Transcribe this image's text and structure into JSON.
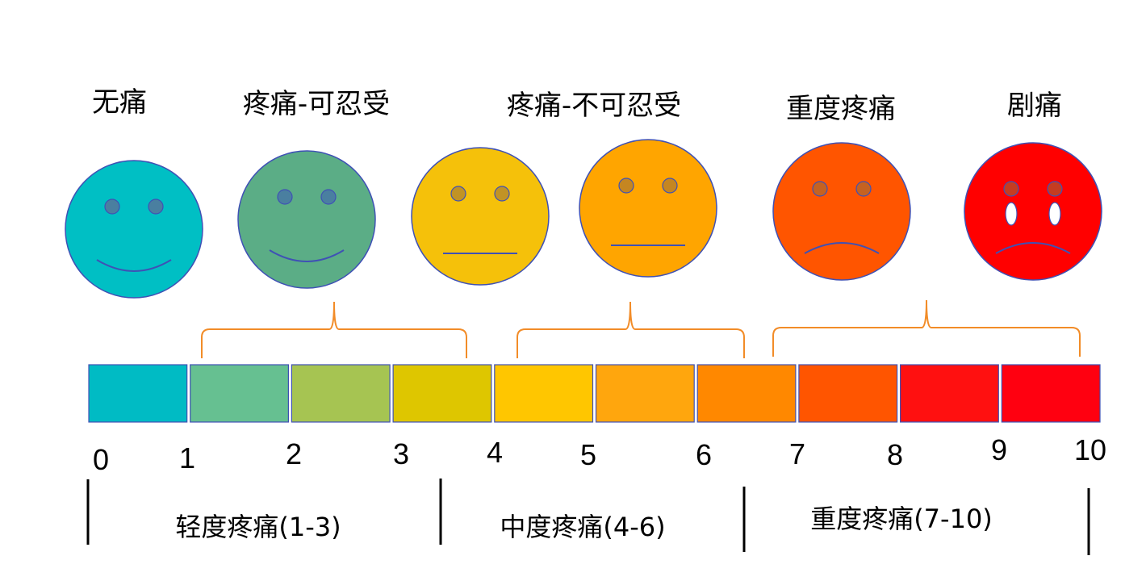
{
  "faces": [
    {
      "label": "无痛",
      "color": "#00BFC4",
      "mood": "happy"
    },
    {
      "label": "疼痛-可忍受",
      "color": "#5BAD86",
      "mood": "happy"
    },
    {
      "label": "疼痛-不可忍受",
      "color": "#F5C10A",
      "mood": "neutral"
    },
    {
      "label": "",
      "color": "#FFA500",
      "mood": "neutral"
    },
    {
      "label": "重度疼痛",
      "color": "#FF5500",
      "mood": "sad"
    },
    {
      "label": "剧痛",
      "color": "#FF0000",
      "mood": "crying"
    }
  ],
  "scale_colors": [
    "#00BBC4",
    "#66C091",
    "#A6C452",
    "#DEC600",
    "#FFC600",
    "#FFA60D",
    "#FF8800",
    "#FF5500",
    "#FF1010",
    "#FF0010"
  ],
  "scale_numbers": [
    "0",
    "1",
    "2",
    "3",
    "4",
    "5",
    "6",
    "7",
    "8",
    "9",
    "10"
  ],
  "bands": [
    {
      "label": "轻度疼痛(1-3)"
    },
    {
      "label": "中度疼痛(4-6)"
    },
    {
      "label": "重度疼痛(7-10)"
    }
  ],
  "colors": {
    "bracket": "#F28C28",
    "face_outline": "#3F51B5",
    "eye": "#4A7FA0"
  }
}
